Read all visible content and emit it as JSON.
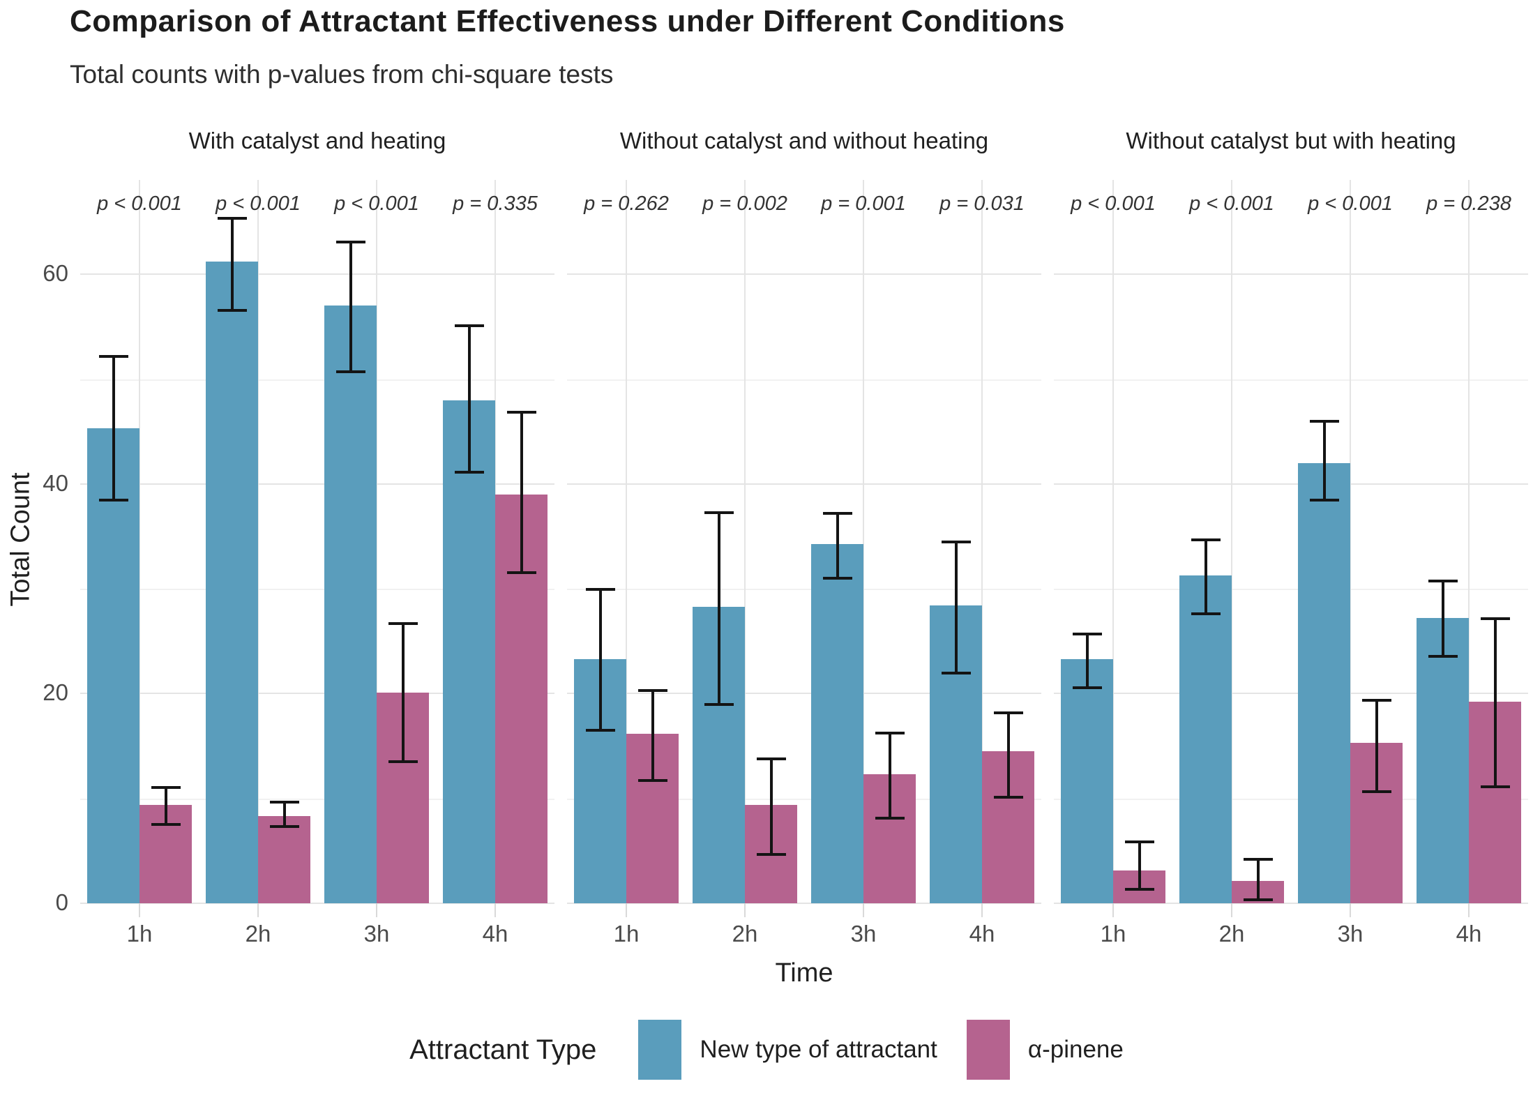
{
  "title": "Comparison of Attractant Effectiveness under Different Conditions",
  "subtitle": "Total counts with p-values from chi-square tests",
  "colors": {
    "blue": "#5A9DBC",
    "pink": "#B5638F",
    "error_bar": "#141414",
    "grid_major": "#e4e4e4",
    "grid_minor": "#f1f1f1",
    "text_dark": "#1f1f1f",
    "text_axis": "#4a4a4a"
  },
  "legend": {
    "title": "Attractant Type",
    "items": [
      {
        "label": "New type of attractant",
        "color_key": "blue"
      },
      {
        "label": "α-pinene",
        "color_key": "pink"
      }
    ]
  },
  "chart_data": {
    "type": "bar",
    "categories": [
      "1h",
      "2h",
      "3h",
      "4h"
    ],
    "xlabel": "Time",
    "ylabel": "Total Count",
    "ylim": [
      0,
      69
    ],
    "yticks": [
      0,
      20,
      40,
      60
    ],
    "grid": true,
    "legend_position": "bottom",
    "error_bars": true,
    "facets": [
      {
        "title": "With catalyst and heating",
        "p_labels": [
          "p < 0.001",
          "p < 0.001",
          "p < 0.001",
          "p = 0.335"
        ],
        "series": [
          {
            "name": "New type of attractant",
            "values": [
              45.3,
              61.2,
              57.0,
              48.0
            ],
            "ci_low": [
              38.3,
              56.4,
              50.6,
              41.0
            ],
            "ci_high": [
              52.3,
              65.5,
              63.2,
              55.2
            ]
          },
          {
            "name": "α-pinene",
            "values": [
              9.4,
              8.3,
              20.1,
              39.0
            ],
            "ci_low": [
              7.4,
              7.2,
              13.4,
              31.4
            ],
            "ci_high": [
              11.2,
              9.8,
              26.8,
              47.0
            ]
          }
        ]
      },
      {
        "title": "Without catalyst and without heating",
        "p_labels": [
          "p = 0.262",
          "p = 0.002",
          "p = 0.001",
          "p = 0.031"
        ],
        "series": [
          {
            "name": "New type of attractant",
            "values": [
              23.3,
              28.3,
              34.3,
              28.4
            ],
            "ci_low": [
              16.4,
              18.8,
              30.9,
              21.8
            ],
            "ci_high": [
              30.1,
              37.4,
              37.3,
              34.6
            ]
          },
          {
            "name": "α-pinene",
            "values": [
              16.2,
              9.4,
              12.3,
              14.5
            ],
            "ci_low": [
              11.6,
              4.5,
              8.0,
              10.0
            ],
            "ci_high": [
              20.4,
              13.9,
              16.4,
              18.3
            ]
          }
        ]
      },
      {
        "title": "Without catalyst but with heating",
        "p_labels": [
          "p < 0.001",
          "p < 0.001",
          "p < 0.001",
          "p = 0.238"
        ],
        "series": [
          {
            "name": "New type of attractant",
            "values": [
              23.3,
              31.3,
              42.0,
              27.2
            ],
            "ci_low": [
              20.4,
              27.5,
              38.3,
              23.4
            ],
            "ci_high": [
              25.8,
              34.8,
              46.1,
              30.9
            ]
          },
          {
            "name": "α-pinene",
            "values": [
              3.1,
              2.1,
              15.3,
              19.2
            ],
            "ci_low": [
              1.2,
              0.2,
              10.5,
              11.0
            ],
            "ci_high": [
              6.0,
              4.3,
              19.5,
              27.3
            ]
          }
        ]
      }
    ]
  }
}
